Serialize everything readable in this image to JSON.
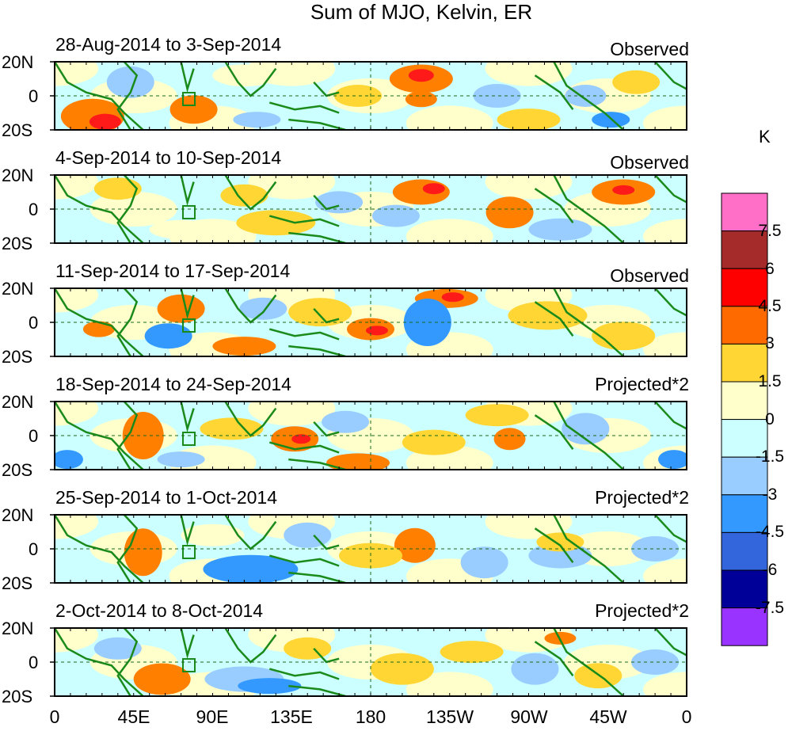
{
  "title": "Sum of MJO, Kelvin, ER",
  "units": "K",
  "latitude_labels": [
    "20N",
    "0",
    "20S"
  ],
  "longitude_labels": [
    "0",
    "45E",
    "90E",
    "135E",
    "180",
    "135W",
    "90W",
    "45W",
    "0"
  ],
  "panels": [
    {
      "date_range": "28-Aug-2014 to 3-Sep-2014",
      "type": "Observed"
    },
    {
      "date_range": "4-Sep-2014 to 10-Sep-2014",
      "type": "Observed"
    },
    {
      "date_range": "11-Sep-2014 to 17-Sep-2014",
      "type": "Observed"
    },
    {
      "date_range": "18-Sep-2014 to 24-Sep-2014",
      "type": "Projected*2"
    },
    {
      "date_range": "25-Sep-2014 to 1-Oct-2014",
      "type": "Projected*2"
    },
    {
      "date_range": "2-Oct-2014 to 8-Oct-2014",
      "type": "Projected*2"
    }
  ],
  "colorbar": {
    "labels": [
      "7.5",
      "6",
      "4.5",
      "3",
      "1.5",
      "0",
      "-1.5",
      "-3",
      "-4.5",
      "-6",
      "-7.5"
    ],
    "colors": [
      "#ff6ec7",
      "#a52a2a",
      "#ff0000",
      "#ff6a00",
      "#ffd633",
      "#ffffcc",
      "#ccffff",
      "#99ccff",
      "#3399ff",
      "#3366dd",
      "#000099",
      "#9933ff"
    ]
  },
  "palette": {
    "coast": "#1a8a1a",
    "warm1": "#ffffcc",
    "warm2": "#ffd633",
    "warm3": "#ff7f00",
    "warm4": "#ff1a1a",
    "cool1": "#ccffff",
    "cool2": "#99ccff",
    "cool3": "#3399ff"
  }
}
